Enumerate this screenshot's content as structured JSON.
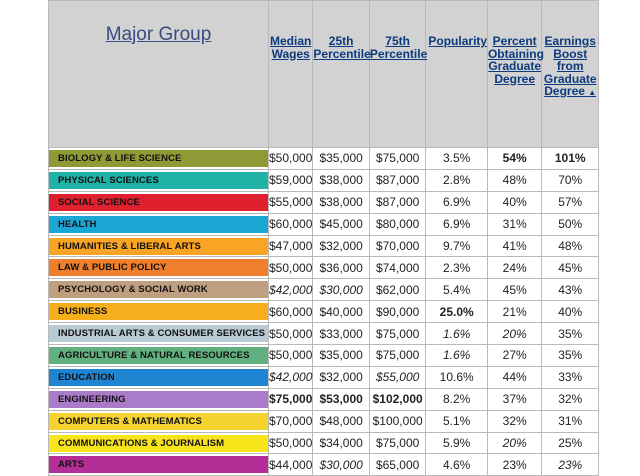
{
  "header": {
    "major_group": "Major Group",
    "median_wages": [
      "Median",
      "Wages"
    ],
    "p25": [
      "25th",
      "Percentile"
    ],
    "p75": [
      "75th",
      "Percentile"
    ],
    "popularity": "Popularity",
    "percent_graduate": [
      "Percent",
      "Obtaining",
      "Graduate",
      "Degree"
    ],
    "earnings_boost": [
      "Earnings",
      "Boost",
      "from",
      "Graduate",
      "Degree"
    ],
    "sort_indicator": "▲",
    "accent_color": "#0c3a7e",
    "sort_arrow_color": "#f5d800"
  },
  "rows": [
    {
      "group": "BIOLOGY & LIFE SCIENCE",
      "color": "#8d9a36",
      "median": "$50,000",
      "p25": "$35,000",
      "p75": "$75,000",
      "popularity": "3.5%",
      "grad": "54%",
      "boost": "101%"
    },
    {
      "group": "PHYSICAL SCIENCES",
      "color": "#1fb2a6",
      "median": "$59,000",
      "p25": "$38,000",
      "p75": "$87,000",
      "popularity": "2.8%",
      "grad": "48%",
      "boost": "70%"
    },
    {
      "group": "SOCIAL SCIENCE",
      "color": "#e0202f",
      "median": "$55,000",
      "p25": "$38,000",
      "p75": "$87,000",
      "popularity": "6.9%",
      "grad": "40%",
      "boost": "57%"
    },
    {
      "group": "HEALTH",
      "color": "#1ba7d6",
      "median": "$60,000",
      "p25": "$45,000",
      "p75": "$80,000",
      "popularity": "6.9%",
      "grad": "31%",
      "boost": "50%"
    },
    {
      "group": "HUMANITIES & LIBERAL ARTS",
      "color": "#f9a425",
      "median": "$47,000",
      "p25": "$32,000",
      "p75": "$70,000",
      "popularity": "9.7%",
      "grad": "41%",
      "boost": "48%"
    },
    {
      "group": "LAW & PUBLIC POLICY",
      "color": "#f07f2d",
      "median": "$50,000",
      "p25": "$36,000",
      "p75": "$74,000",
      "popularity": "2.3%",
      "grad": "24%",
      "boost": "45%"
    },
    {
      "group": "PSYCHOLOGY & SOCIAL WORK",
      "color": "#bf9f80",
      "median": "$42,000",
      "p25": "$30,000",
      "p75": "$62,000",
      "popularity": "5.4%",
      "grad": "45%",
      "boost": "43%"
    },
    {
      "group": "BUSINESS",
      "color": "#f6ae1c",
      "median": "$60,000",
      "p25": "$40,000",
      "p75": "$90,000",
      "popularity": "25.0%",
      "grad": "21%",
      "boost": "40%"
    },
    {
      "group": "INDUSTRIAL ARTS & CONSUMER SERVICES",
      "color": "#b8cbd4",
      "median": "$50,000",
      "p25": "$33,000",
      "p75": "$75,000",
      "popularity": "1.6%",
      "grad": "20%",
      "boost": "35%"
    },
    {
      "group": "AGRICULTURE & NATURAL RESOURCES",
      "color": "#62b07f",
      "median": "$50,000",
      "p25": "$35,000",
      "p75": "$75,000",
      "popularity": "1.6%",
      "grad": "27%",
      "boost": "35%"
    },
    {
      "group": "EDUCATION",
      "color": "#1f85d3",
      "median": "$42,000",
      "p25": "$32,000",
      "p75": "$55,000",
      "popularity": "10.6%",
      "grad": "44%",
      "boost": "33%"
    },
    {
      "group": "ENGINEERING",
      "color": "#a97bc8",
      "median": "$75,000",
      "p25": "$53,000",
      "p75": "$102,000",
      "popularity": "8.2%",
      "grad": "37%",
      "boost": "32%"
    },
    {
      "group": "COMPUTERS & MATHEMATICS",
      "color": "#f4d22f",
      "median": "$70,000",
      "p25": "$48,000",
      "p75": "$100,000",
      "popularity": "5.1%",
      "grad": "32%",
      "boost": "31%"
    },
    {
      "group": "COMMUNICATIONS & JOURNALISM",
      "color": "#f7e41a",
      "median": "$50,000",
      "p25": "$34,000",
      "p75": "$75,000",
      "popularity": "5.9%",
      "grad": "20%",
      "boost": "25%"
    },
    {
      "group": "ARTS",
      "color": "#b52d97",
      "median": "$44,000",
      "p25": "$30,000",
      "p75": "$65,000",
      "popularity": "4.6%",
      "grad": "23%",
      "boost": "23%"
    }
  ],
  "styles": {
    "bold": [
      [
        0,
        "grad"
      ],
      [
        0,
        "boost"
      ],
      [
        7,
        "popularity"
      ],
      [
        11,
        "median"
      ],
      [
        11,
        "p25"
      ],
      [
        11,
        "p75"
      ]
    ],
    "italic": [
      [
        6,
        "median"
      ],
      [
        6,
        "p25"
      ],
      [
        8,
        "popularity"
      ],
      [
        8,
        "grad"
      ],
      [
        9,
        "popularity"
      ],
      [
        10,
        "median"
      ],
      [
        10,
        "p75"
      ],
      [
        13,
        "grad"
      ],
      [
        14,
        "p25"
      ],
      [
        14,
        "boost"
      ]
    ]
  }
}
